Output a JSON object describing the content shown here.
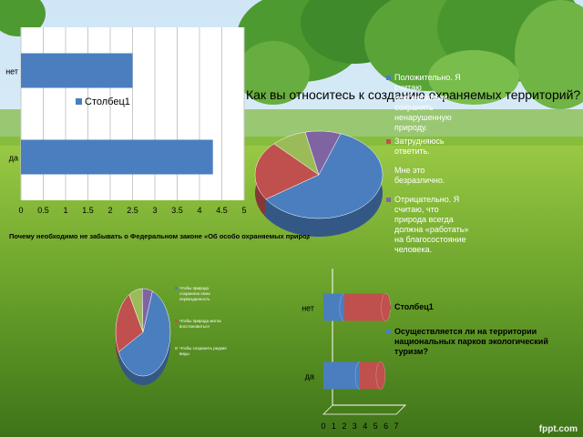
{
  "watermark": "fppt.com",
  "chart_data": [
    {
      "type": "bar",
      "orientation": "horizontal",
      "categories": [
        "да",
        "нет"
      ],
      "series": [
        {
          "name": "Столбец1",
          "values": [
            4.3,
            2.5
          ]
        }
      ],
      "xlim": [
        0,
        5
      ],
      "x_ticks": [
        "0",
        "0.5",
        "1",
        "1.5",
        "2",
        "2.5",
        "3",
        "3.5",
        "4",
        "4.5",
        "5"
      ],
      "grid": true,
      "legend": "inside-right",
      "colors": {
        "series": "#4a7ebf",
        "plot_bg": "#ffffff"
      }
    },
    {
      "type": "pie",
      "title": "Как вы относитесь к созданию охраняемых территорий?",
      "slices": [
        {
          "label": "Положительно. Я считаю необходимым сохранять ненарушенную природу.",
          "value": 60,
          "color": "#4a7ebf"
        },
        {
          "label": "Затрудняюсь ответить.",
          "value": 22,
          "color": "#c0504d"
        },
        {
          "label": "Мне это безразлично.",
          "value": 9,
          "color": "#9bbb59"
        },
        {
          "label": "Отрицательно. Я считаю, что природа всегда должна «работать» на благосостояние человека.",
          "value": 9,
          "color": "#8064a2"
        }
      ],
      "legend": "right"
    },
    {
      "type": "pie",
      "title": "Почему необходимо не забывать о Федеральном законе «Об особо охраняемых природных территориях»",
      "slices": [
        {
          "label": "Чтобы природа сохраняла свою первозданность",
          "value": 62,
          "color": "#4a7ebf"
        },
        {
          "label": "Чтобы природа могла восстановиться",
          "value": 24,
          "color": "#c0504d"
        },
        {
          "label": "Чтобы сохранить редкие виды",
          "value": 8,
          "color": "#9bbb59"
        },
        {
          "label": "",
          "value": 6,
          "color": "#8064a2"
        }
      ],
      "legend": "right"
    },
    {
      "type": "bar",
      "orientation": "horizontal",
      "style": "3d-cylinder-stacked",
      "categories": [
        "да",
        "нет"
      ],
      "series": [
        {
          "name": "Осуществляется ли на территории национальных парков экологический туризм?",
          "values": [
            3.5,
            2.0
          ],
          "color": "#4a7ebf"
        },
        {
          "name": "Столбец1",
          "values": [
            2.0,
            4.0
          ],
          "color": "#c0504d"
        }
      ],
      "xlim": [
        0,
        7
      ],
      "x_ticks": [
        "0",
        "1",
        "2",
        "3",
        "4",
        "5",
        "6",
        "7"
      ],
      "legend": "right"
    }
  ]
}
